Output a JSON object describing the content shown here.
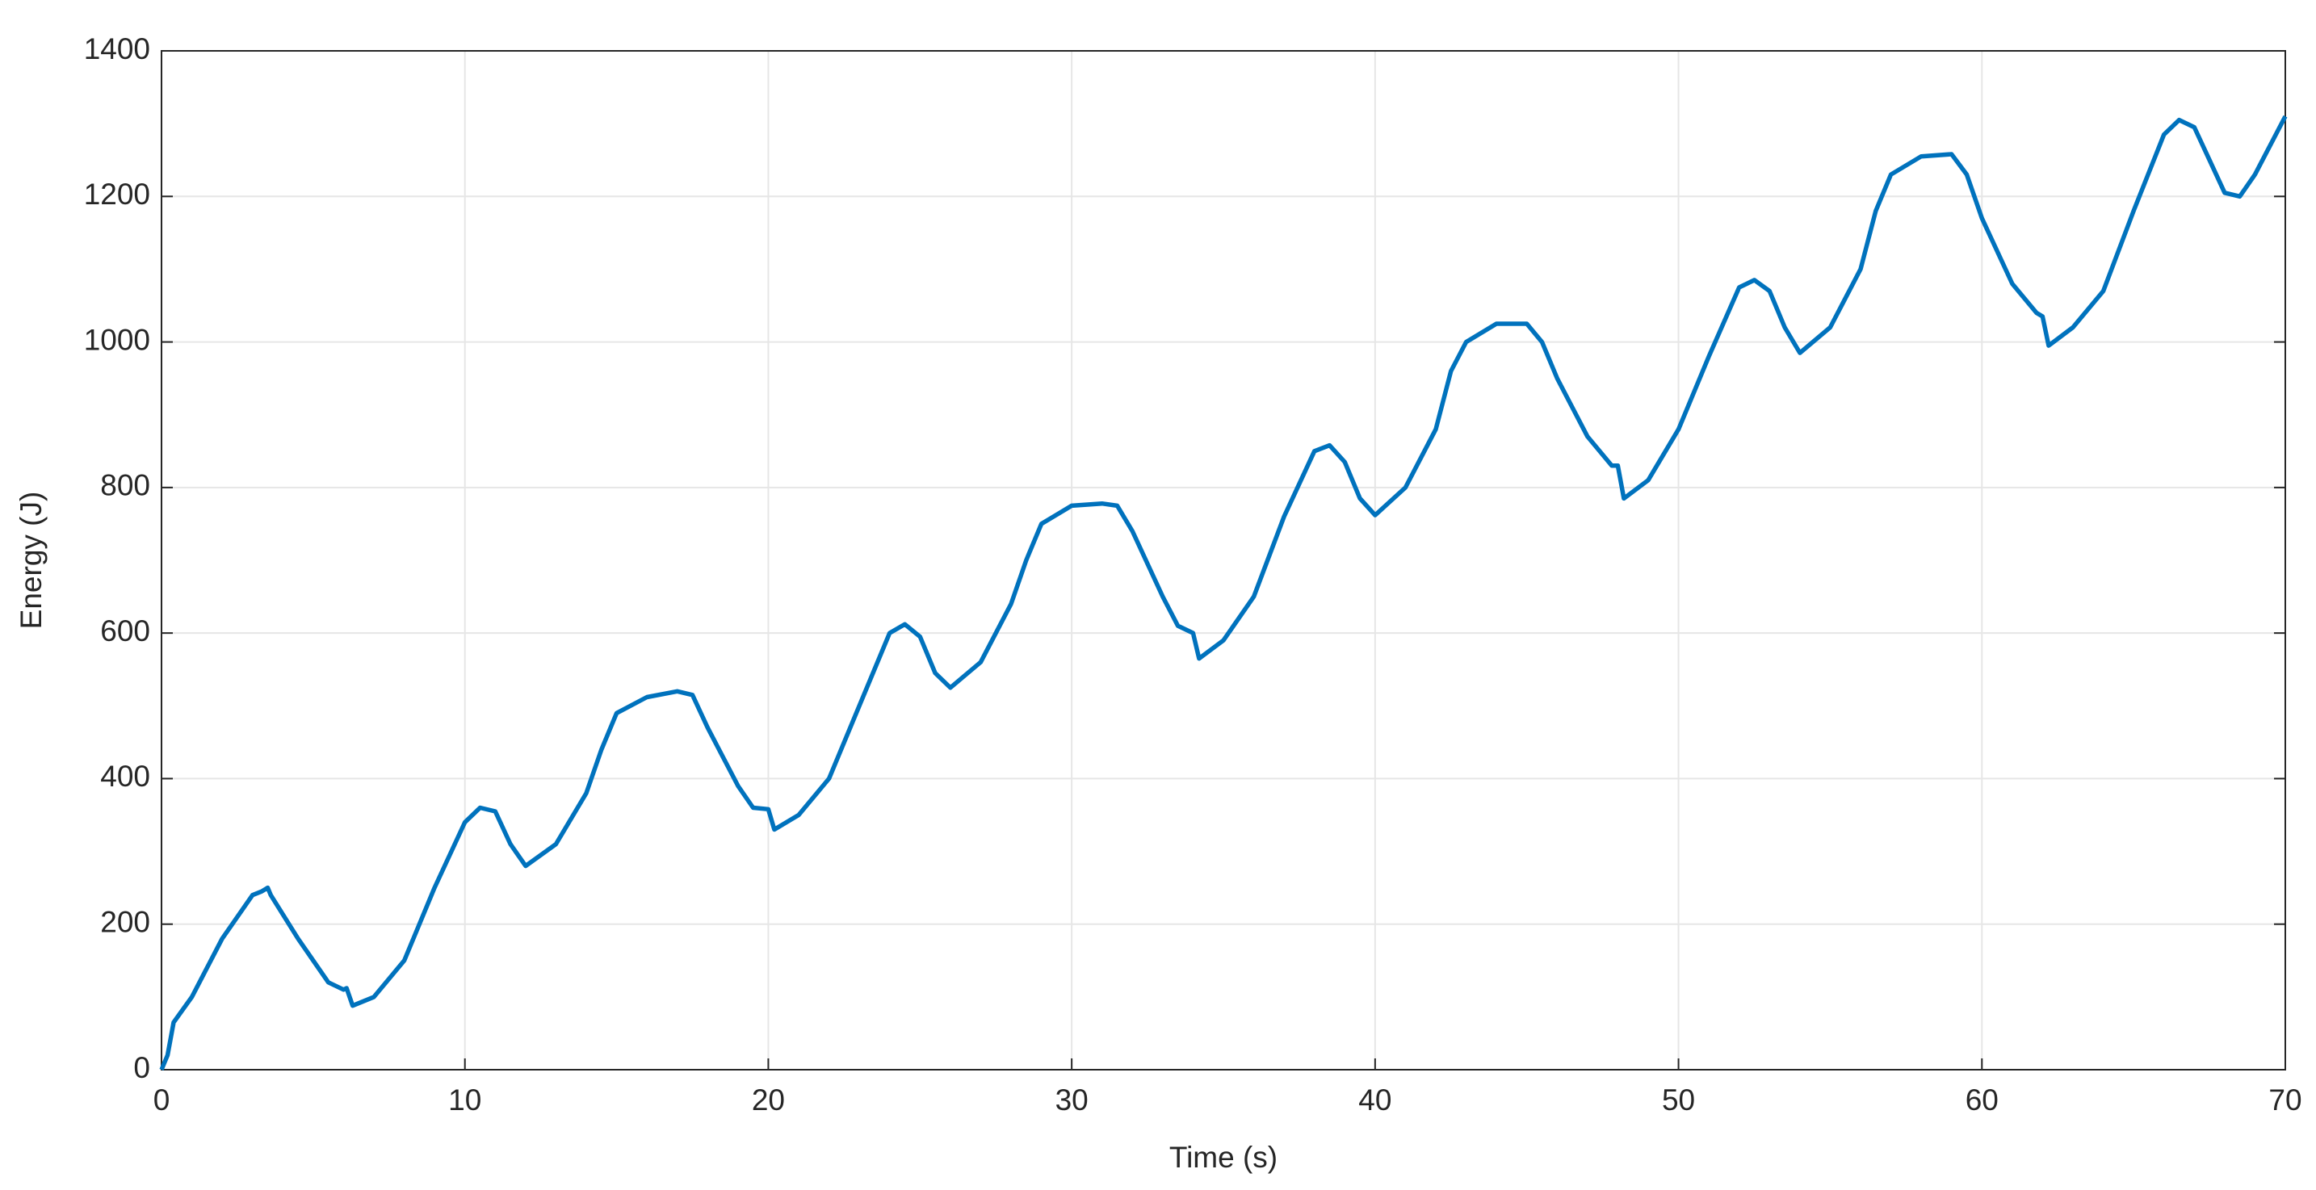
{
  "chart_data": {
    "type": "line",
    "xlabel": "Time (s)",
    "ylabel": "Energy (J)",
    "xlim": [
      0,
      70
    ],
    "xticks": [
      0,
      10,
      20,
      30,
      40,
      50,
      60,
      70
    ],
    "ylim": [
      0,
      1400
    ],
    "yticks": [
      0,
      200,
      400,
      600,
      800,
      1000,
      1200,
      1400
    ],
    "grid": true,
    "series": [
      {
        "color": "#0072bd",
        "x": [
          0,
          0.2,
          0.4,
          1,
          2,
          3,
          3.3,
          3.5,
          3.6,
          4.5,
          5.5,
          6,
          6.1,
          6.3,
          7,
          8,
          9,
          10,
          10.5,
          11,
          11.5,
          12,
          13,
          14,
          14.5,
          15,
          16,
          17,
          17.5,
          18,
          19,
          19.5,
          20,
          20.2,
          21,
          22,
          23,
          24,
          24.5,
          25,
          25.5,
          26,
          27,
          28,
          28.5,
          29,
          30,
          31,
          31.5,
          32,
          33,
          33.5,
          34,
          34.2,
          35,
          36,
          37,
          38,
          38.5,
          39,
          39.5,
          40,
          41,
          42,
          42.5,
          43,
          44,
          45,
          45.5,
          46,
          47,
          47.8,
          48,
          48.2,
          49,
          50,
          51,
          52,
          52.5,
          53,
          53.5,
          54,
          55,
          56,
          56.5,
          57,
          58,
          59,
          59.5,
          60,
          61,
          61.8,
          62,
          62.2,
          63,
          64,
          65,
          66,
          66.5,
          67,
          67.5,
          68,
          68.5,
          69,
          70
        ],
        "values": [
          0,
          20,
          65,
          100,
          180,
          240,
          245,
          250,
          240,
          180,
          120,
          110,
          112,
          88,
          100,
          150,
          250,
          340,
          360,
          355,
          310,
          280,
          310,
          380,
          440,
          490,
          512,
          520,
          515,
          470,
          390,
          360,
          358,
          330,
          350,
          400,
          500,
          600,
          612,
          595,
          545,
          525,
          560,
          640,
          700,
          750,
          775,
          778,
          775,
          740,
          650,
          610,
          600,
          565,
          590,
          650,
          760,
          850,
          858,
          835,
          785,
          762,
          800,
          880,
          960,
          1000,
          1025,
          1025,
          1000,
          950,
          870,
          830,
          830,
          785,
          810,
          880,
          980,
          1075,
          1085,
          1070,
          1020,
          985,
          1020,
          1100,
          1180,
          1230,
          1255,
          1258,
          1230,
          1170,
          1080,
          1040,
          1035,
          995,
          1020,
          1070,
          1180,
          1285,
          1305,
          1295,
          1250,
          1205,
          1200,
          1230,
          1310
        ]
      }
    ]
  }
}
